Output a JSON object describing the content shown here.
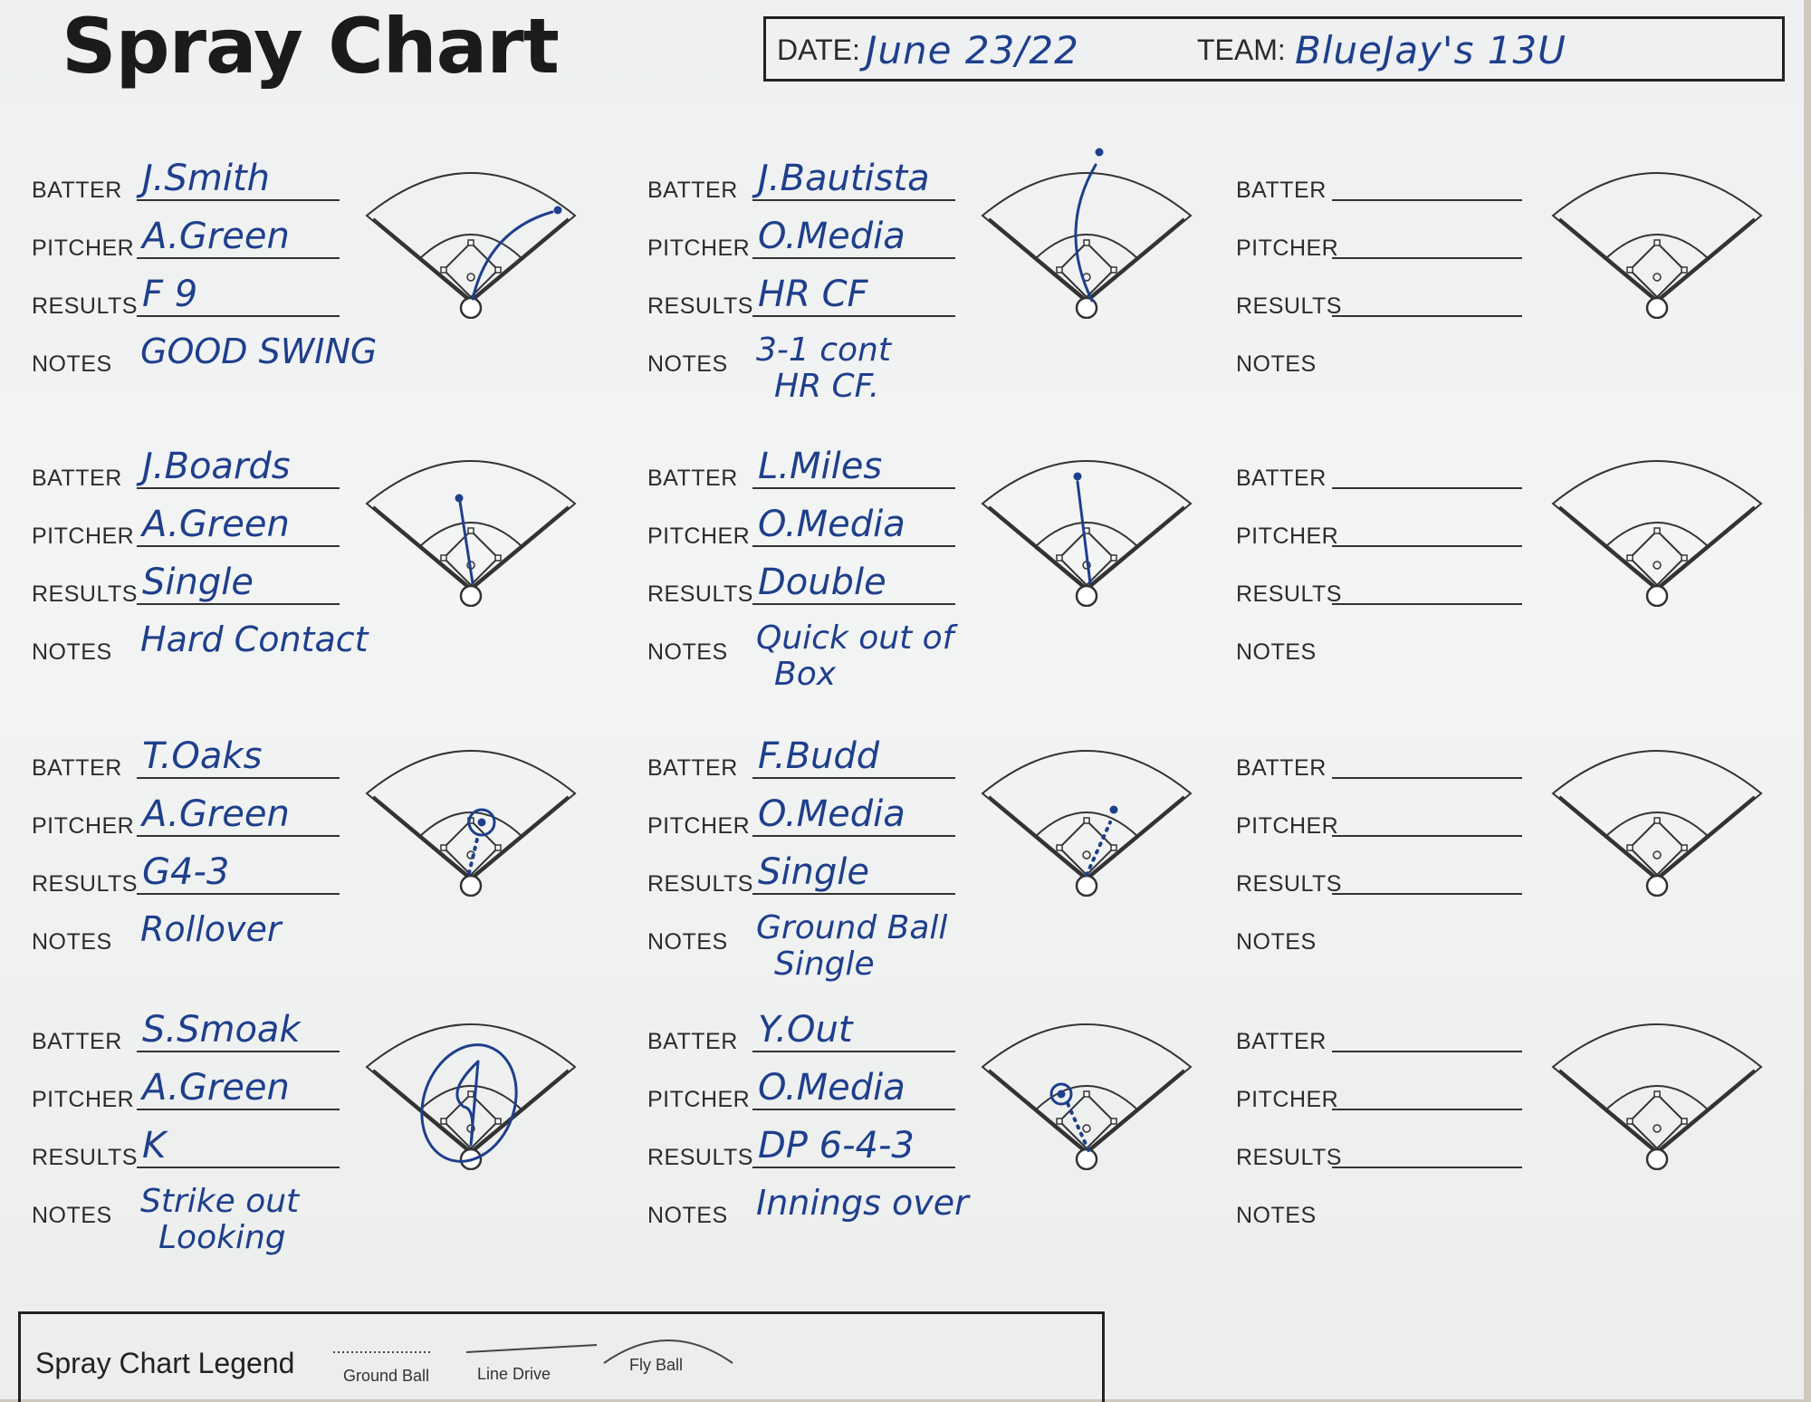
{
  "title": "Spray Chart",
  "header": {
    "date_label": "DATE:",
    "date_value": "June 23/22",
    "team_label": "TEAM:",
    "team_value": "BlueJay's 13U"
  },
  "labels": {
    "batter": "BATTER",
    "pitcher": "PITCHER",
    "results": "RESULTS",
    "notes": "NOTES"
  },
  "cards": [
    {
      "batter": "J.Smith",
      "pitcher": "A.Green",
      "results": "F 9",
      "notes": [
        "GOOD SWING"
      ],
      "hit": "fly-right"
    },
    {
      "batter": "J.Bautista",
      "pitcher": "O.Media",
      "results": "HR CF",
      "notes": [
        "3-1 cont",
        "HR CF."
      ],
      "hit": "homerun-center"
    },
    {
      "batter": "",
      "pitcher": "",
      "results": "",
      "notes": [],
      "hit": "none"
    },
    {
      "batter": "J.Boards",
      "pitcher": "A.Green",
      "results": "Single",
      "notes": [
        "Hard Contact"
      ],
      "hit": "line-center"
    },
    {
      "batter": "L.Miles",
      "pitcher": "O.Media",
      "results": "Double",
      "notes": [
        "Quick out of",
        "Box"
      ],
      "hit": "line-center-deep"
    },
    {
      "batter": "",
      "pitcher": "",
      "results": "",
      "notes": [],
      "hit": "none"
    },
    {
      "batter": "T.Oaks",
      "pitcher": "A.Green",
      "results": "G4-3",
      "notes": [
        "Rollover"
      ],
      "hit": "ground-second"
    },
    {
      "batter": "F.Budd",
      "pitcher": "O.Media",
      "results": "Single",
      "notes": [
        "Ground Ball",
        "Single"
      ],
      "hit": "ground-right"
    },
    {
      "batter": "",
      "pitcher": "",
      "results": "",
      "notes": [],
      "hit": "none"
    },
    {
      "batter": "S.Smoak",
      "pitcher": "A.Green",
      "results": "K",
      "notes": [
        "Strike out",
        "Looking"
      ],
      "hit": "strikeout"
    },
    {
      "batter": "Y.Out",
      "pitcher": "O.Media",
      "results": "DP 6-4-3",
      "notes": [
        "Innings over"
      ],
      "hit": "ground-short"
    },
    {
      "batter": "",
      "pitcher": "",
      "results": "",
      "notes": [],
      "hit": "none"
    }
  ],
  "legend": {
    "title": "Spray Chart Legend",
    "ground_ball": "Ground Ball",
    "line_drive": "Line Drive",
    "fly_ball": "Fly Ball"
  }
}
